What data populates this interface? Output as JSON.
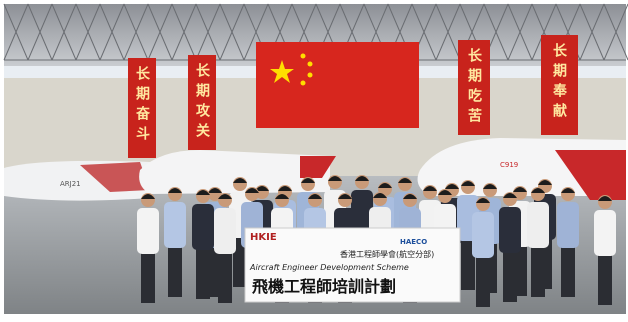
{
  "banners": [
    "长期奋斗",
    "长期攻关",
    "长期吃苦",
    "长期奉献"
  ],
  "aircraft": [
    "ARJ21",
    "C919"
  ],
  "group_banner": {
    "logos": [
      "HKIE",
      "HAECO"
    ],
    "organization": "香港工程師學會(航空分部)",
    "title_en": "Aircraft Engineer Development Scheme",
    "title_zh": "飛機工程師培訓計劃"
  }
}
